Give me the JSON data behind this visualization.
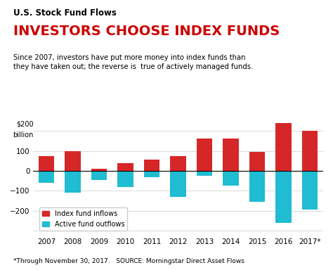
{
  "title_small": "U.S. Stock Fund Flows",
  "title_large": "INVESTORS CHOOSE INDEX FUNDS",
  "subtitle": "Since 2007, investors have put more money into index funds than\nthey have taken out; the reverse is  true of actively managed funds.",
  "footnote": "*Through November 30, 2017.   SOURCE: Morningstar Direct Asset Flows",
  "years": [
    "2007",
    "2008",
    "2009",
    "2010",
    "2011",
    "2012",
    "2013",
    "2014",
    "2015",
    "2016",
    "2017*"
  ],
  "index_inflows": [
    75,
    100,
    10,
    40,
    55,
    75,
    160,
    160,
    95,
    240,
    200
  ],
  "active_outflows": [
    -60,
    -110,
    -45,
    -80,
    -30,
    -130,
    -25,
    -75,
    -155,
    -260,
    -195
  ],
  "index_color": "#d62728",
  "active_color": "#1fbcd2",
  "background_color": "#ffffff",
  "ylim": [
    -320,
    260
  ],
  "yticks": [
    -300,
    -200,
    -100,
    0,
    100,
    200
  ],
  "ylabel_text": "$200\nbillion",
  "legend_index": "Index fund inflows",
  "legend_active": "Active fund outflows"
}
